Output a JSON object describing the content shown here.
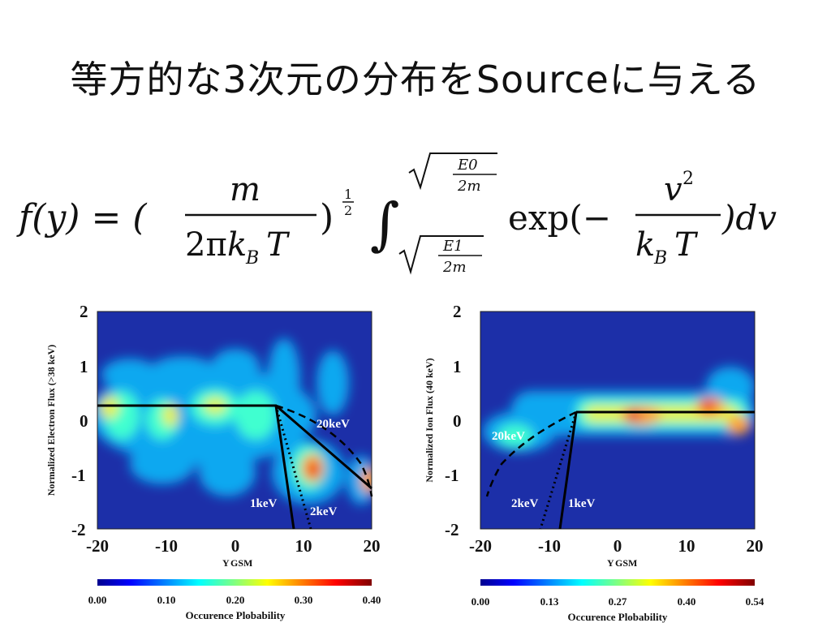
{
  "slide": {
    "title": "等方的な3次元の分布をSourceに与える"
  },
  "formula": {
    "lhs": "f(y) = (",
    "frac_num": "m",
    "frac_den_pre": "2π",
    "k": "k",
    "k_sub": "B",
    "T": "T",
    "power_close": ")",
    "exp_num": "1",
    "exp_den": "2",
    "integral": "∫",
    "upper_num": "E0",
    "upper_den": "2m",
    "lower_num": "E1",
    "lower_den": "2m",
    "exp_fn": "exp(−",
    "v": "v",
    "v_sup": "2",
    "tail": ")dv"
  },
  "figures": [
    {
      "ylabel": "Normalized Electron Flux (>38 keV)",
      "xlabel_main": "Y",
      "xlabel_sub": "GSM",
      "xticks": [
        "-20",
        "-10",
        "0",
        "10",
        "20"
      ],
      "yticks": [
        "2",
        "1",
        "0",
        "-1",
        "-2"
      ],
      "curve_labels": [
        "20keV",
        "1keV",
        "2keV"
      ],
      "colorbar_ticks": [
        "0.00",
        "0.10",
        "0.20",
        "0.30",
        "0.40"
      ],
      "colorbar_label": "Occurence Plobability"
    },
    {
      "ylabel": "Normalized Ion Flux (40 keV)",
      "xlabel_main": "Y",
      "xlabel_sub": "GSM",
      "xticks": [
        "-20",
        "-10",
        "0",
        "10",
        "20"
      ],
      "yticks": [
        "2",
        "1",
        "0",
        "-1",
        "-2"
      ],
      "curve_labels": [
        "20keV",
        "2keV",
        "1keV"
      ],
      "colorbar_ticks": [
        "0.00",
        "0.13",
        "0.27",
        "0.40",
        "0.54"
      ],
      "colorbar_label": "Occurence Plobability"
    }
  ],
  "colors": {
    "jet": [
      "#00008f",
      "#0000ff",
      "#00a0ff",
      "#00ffff",
      "#80ff80",
      "#ffff00",
      "#ff8000",
      "#ff0000",
      "#800000"
    ],
    "background_field": "#1c2fa8"
  }
}
